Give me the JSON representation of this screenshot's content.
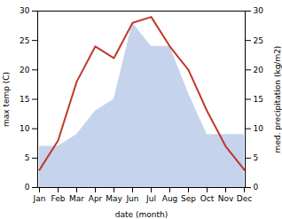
{
  "chart_data": {
    "type": "line",
    "xlabel": "date (month)",
    "ylabel": "max temp (C)",
    "y2label": "med. precipitation (kg/m2)",
    "categories": [
      "Jan",
      "Feb",
      "Mar",
      "Apr",
      "May",
      "Jun",
      "Jul",
      "Aug",
      "Sep",
      "Oct",
      "Nov",
      "Dec"
    ],
    "series": [
      {
        "type": "area",
        "axis": "y2",
        "color": "#c5d4ec",
        "values": [
          7,
          7,
          9,
          13,
          15,
          28,
          24,
          24,
          16,
          9,
          9,
          9
        ]
      },
      {
        "type": "line",
        "color": "#c0392b",
        "values": [
          3,
          8,
          18,
          24,
          22,
          28,
          29,
          24,
          20,
          13,
          7,
          3
        ]
      }
    ],
    "ylim": [
      0,
      30
    ],
    "yticks": [
      0,
      5,
      10,
      15,
      20,
      25,
      30
    ],
    "y2lim": [
      0,
      30
    ],
    "y2ticks": [
      0,
      5,
      10,
      15,
      20,
      25,
      30
    ]
  }
}
